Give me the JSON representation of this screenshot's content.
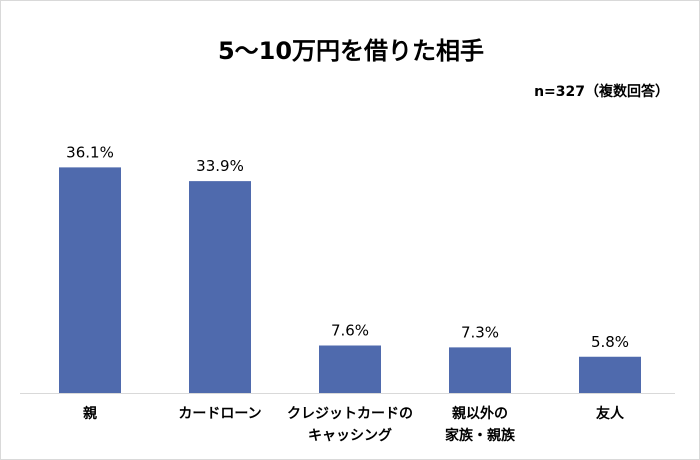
{
  "chart_data": {
    "type": "bar",
    "title": "5～10万円を借りた相手",
    "note": "n=327（複数回答）",
    "categories": [
      "親",
      "カードローン",
      "クレジットカードのキャッシング",
      "親以外の家族・親族",
      "友人"
    ],
    "category_lines": [
      [
        "親"
      ],
      [
        "カードローン"
      ],
      [
        "クレジットカードの",
        "キャッシング"
      ],
      [
        "親以外の",
        "家族・親族"
      ],
      [
        "友人"
      ]
    ],
    "values": [
      36.1,
      33.9,
      7.6,
      7.3,
      5.8
    ],
    "data_labels": [
      "36.1%",
      "33.9%",
      "7.6%",
      "7.3%",
      "5.8%"
    ],
    "ylim": [
      0,
      40
    ],
    "grid": false,
    "xlabel": "",
    "ylabel": "",
    "colors": {
      "bar": "#4f6aad",
      "axis": "#d9d9d9",
      "text": "#000000"
    }
  }
}
